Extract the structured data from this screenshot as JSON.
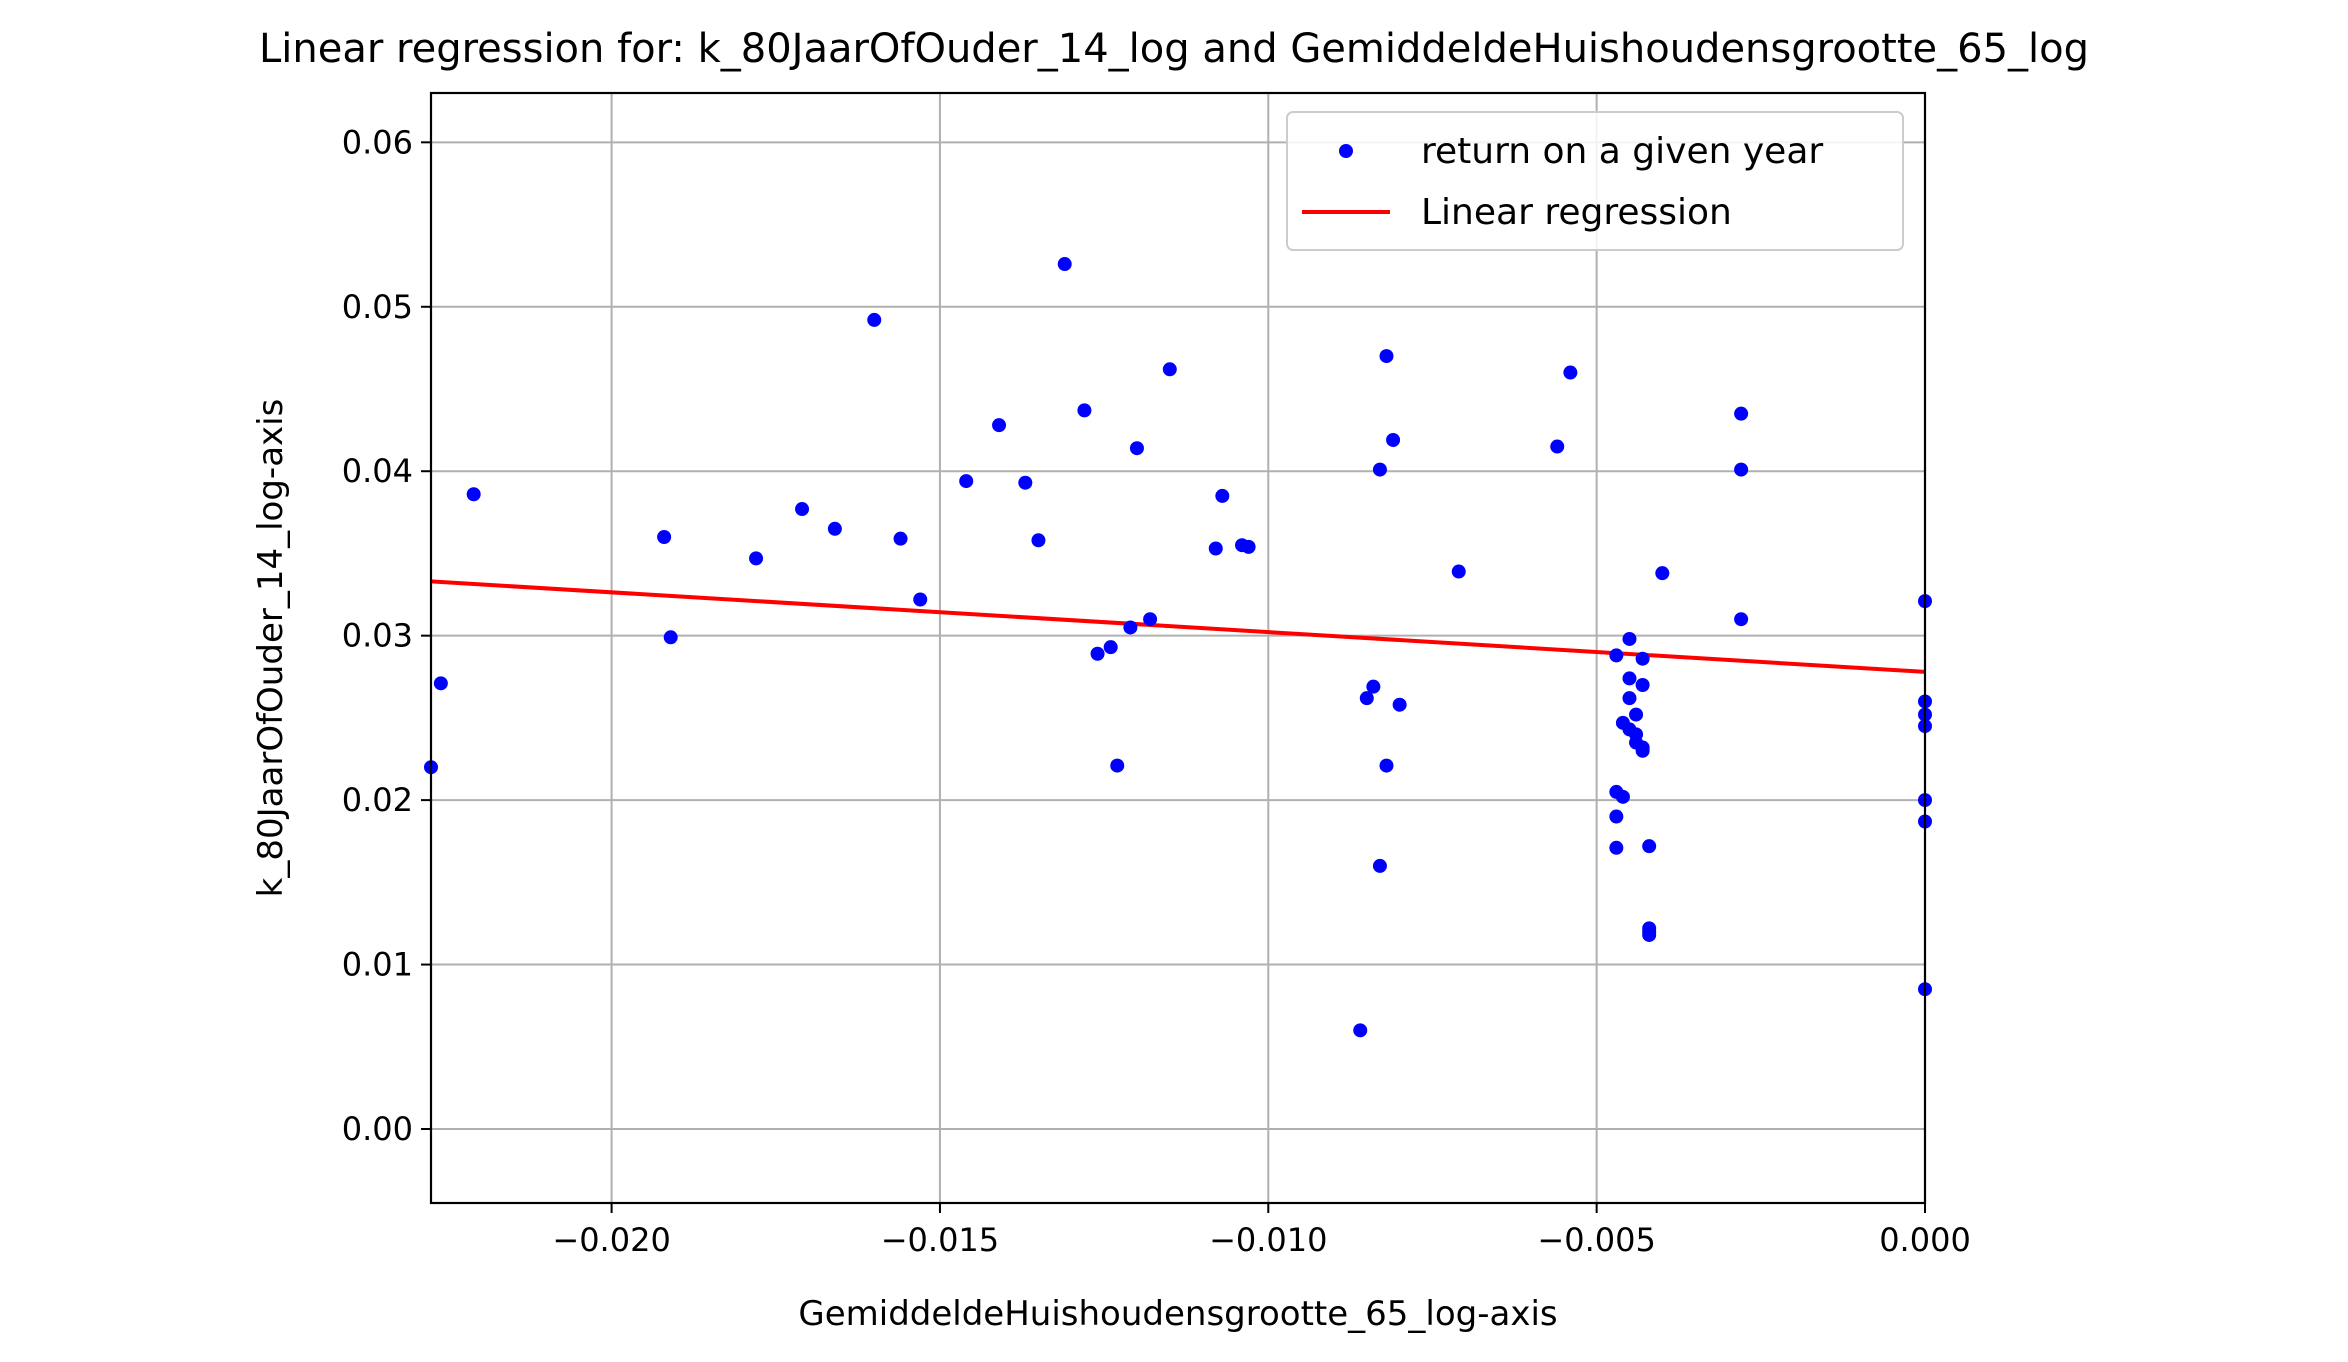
{
  "chart_data": {
    "type": "scatter",
    "title": "Linear regression for: k_80JaarOfOuder_14_log and GemiddeldeHuishoudensgrootte_65_log",
    "xlabel": "GemiddeldeHuishoudensgrootte_65_log-axis",
    "ylabel": "k_80JaarOfOuder_14_log-axis",
    "xlim": [
      -0.02275,
      0.0
    ],
    "ylim": [
      -0.0045,
      0.063
    ],
    "grid": true,
    "legend_position": "top-right",
    "x_ticks": [
      {
        "value": -0.02,
        "label": "−0.020"
      },
      {
        "value": -0.015,
        "label": "−0.015"
      },
      {
        "value": -0.01,
        "label": "−0.010"
      },
      {
        "value": -0.005,
        "label": "−0.005"
      },
      {
        "value": 0.0,
        "label": "0.000"
      }
    ],
    "y_ticks": [
      {
        "value": 0.0,
        "label": "0.00"
      },
      {
        "value": 0.01,
        "label": "0.01"
      },
      {
        "value": 0.02,
        "label": "0.02"
      },
      {
        "value": 0.03,
        "label": "0.03"
      },
      {
        "value": 0.04,
        "label": "0.04"
      },
      {
        "value": 0.05,
        "label": "0.05"
      },
      {
        "value": 0.06,
        "label": "0.06"
      }
    ],
    "series": [
      {
        "name": "return on a given year",
        "kind": "scatter",
        "color": "#0000ff",
        "points": [
          [
            -0.02275,
            0.022
          ],
          [
            -0.0226,
            0.0271
          ],
          [
            -0.0221,
            0.0386
          ],
          [
            -0.0192,
            0.036
          ],
          [
            -0.0191,
            0.0299
          ],
          [
            -0.0178,
            0.0347
          ],
          [
            -0.0171,
            0.0377
          ],
          [
            -0.0166,
            0.0365
          ],
          [
            -0.016,
            0.0492
          ],
          [
            -0.0156,
            0.0359
          ],
          [
            -0.0153,
            0.0322
          ],
          [
            -0.0146,
            0.0394
          ],
          [
            -0.0141,
            0.0428
          ],
          [
            -0.0137,
            0.0393
          ],
          [
            -0.0135,
            0.0358
          ],
          [
            -0.0131,
            0.0526
          ],
          [
            -0.0128,
            0.0437
          ],
          [
            -0.0126,
            0.0289
          ],
          [
            -0.0124,
            0.0293
          ],
          [
            -0.0123,
            0.0221
          ],
          [
            -0.0121,
            0.0305
          ],
          [
            -0.012,
            0.0414
          ],
          [
            -0.0118,
            0.031
          ],
          [
            -0.0115,
            0.0462
          ],
          [
            -0.0108,
            0.0353
          ],
          [
            -0.0107,
            0.0385
          ],
          [
            -0.0104,
            0.0355
          ],
          [
            -0.0103,
            0.0354
          ],
          [
            -0.0086,
            0.006
          ],
          [
            -0.0085,
            0.0262
          ],
          [
            -0.0084,
            0.0269
          ],
          [
            -0.0083,
            0.016
          ],
          [
            -0.0083,
            0.0401
          ],
          [
            -0.0082,
            0.047
          ],
          [
            -0.0082,
            0.0221
          ],
          [
            -0.0081,
            0.0419
          ],
          [
            -0.008,
            0.0258
          ],
          [
            -0.0071,
            0.0339
          ],
          [
            -0.0056,
            0.0415
          ],
          [
            -0.0054,
            0.046
          ],
          [
            -0.0047,
            0.0171
          ],
          [
            -0.0047,
            0.019
          ],
          [
            -0.0047,
            0.0205
          ],
          [
            -0.0047,
            0.0288
          ],
          [
            -0.0046,
            0.0247
          ],
          [
            -0.0046,
            0.0202
          ],
          [
            -0.0045,
            0.0298
          ],
          [
            -0.0045,
            0.0274
          ],
          [
            -0.0045,
            0.0262
          ],
          [
            -0.0045,
            0.0243
          ],
          [
            -0.0044,
            0.0252
          ],
          [
            -0.0044,
            0.0235
          ],
          [
            -0.0044,
            0.024
          ],
          [
            -0.0043,
            0.0232
          ],
          [
            -0.0043,
            0.023
          ],
          [
            -0.0043,
            0.027
          ],
          [
            -0.0043,
            0.0286
          ],
          [
            -0.0042,
            0.0122
          ],
          [
            -0.0042,
            0.0118
          ],
          [
            -0.0042,
            0.012
          ],
          [
            -0.0042,
            0.0172
          ],
          [
            -0.004,
            0.0338
          ],
          [
            -0.0028,
            0.0435
          ],
          [
            -0.0028,
            0.0401
          ],
          [
            -0.0028,
            0.031
          ],
          [
            0.0,
            0.0321
          ],
          [
            0.0,
            0.026
          ],
          [
            0.0,
            0.0252
          ],
          [
            0.0,
            0.0245
          ],
          [
            0.0,
            0.02
          ],
          [
            0.0,
            0.0187
          ],
          [
            0.0,
            0.0085
          ]
        ]
      },
      {
        "name": "Linear regression",
        "kind": "line",
        "color": "#ff0000",
        "x": [
          -0.02275,
          0.0
        ],
        "y": [
          0.0333,
          0.0278
        ]
      }
    ]
  }
}
